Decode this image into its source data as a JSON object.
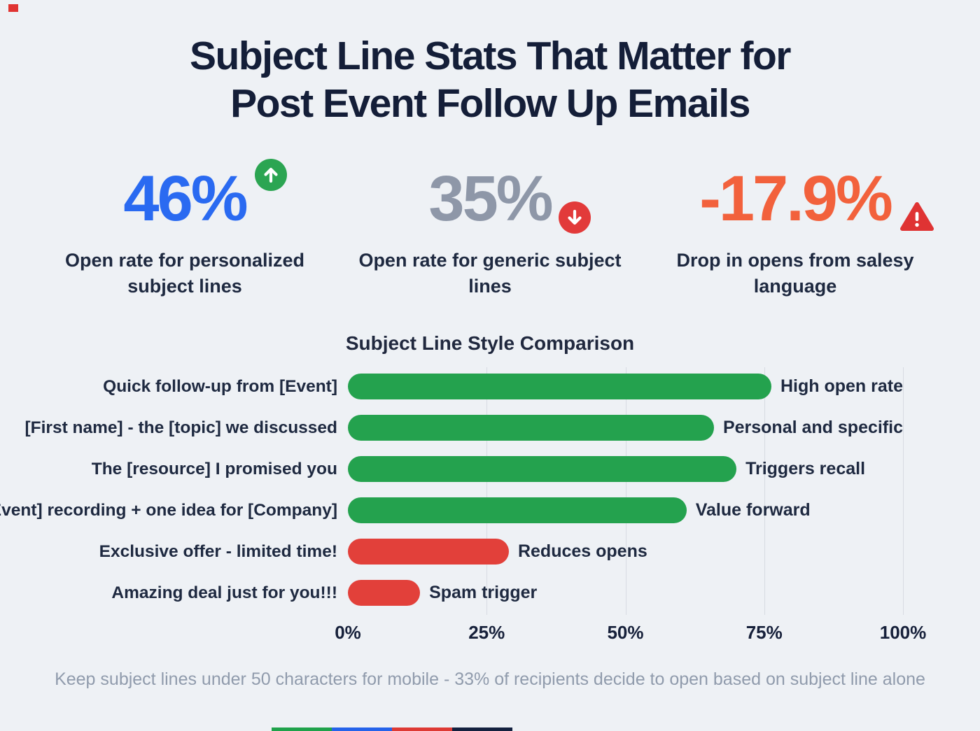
{
  "header": {
    "title_line1": "Subject Line Stats That Matter for",
    "title_line2": "Post Event Follow Up Emails"
  },
  "stats": [
    {
      "value": "46%",
      "caption": "Open rate for personalized subject lines",
      "value_color": "#2a6af1",
      "icon": "arrow-up-circle",
      "icon_color": "#2ba552"
    },
    {
      "value": "35%",
      "caption": "Open rate for generic subject lines",
      "value_color": "#8e97a8",
      "icon": "arrow-down-circle",
      "icon_color": "#e23a3a"
    },
    {
      "value": "-17.9%",
      "caption": "Drop in opens from salesy language",
      "value_color": "#f2613c",
      "icon": "warning-triangle",
      "icon_color": "#df3333"
    }
  ],
  "chart_data": {
    "type": "bar",
    "orientation": "horizontal",
    "title": "Subject Line Style Comparison",
    "categories": [
      "Quick follow-up from [Event]",
      "[First name] - the [topic] we discussed",
      "The [resource] I promised you",
      "[Event] recording + one idea for [Company]",
      "Exclusive offer - limited time!",
      "Amazing deal just for you!!!"
    ],
    "values": [
      83,
      74,
      70,
      61,
      29,
      13
    ],
    "bar_colors": [
      "#24a24e",
      "#24a24e",
      "#24a24e",
      "#24a24e",
      "#e2403a",
      "#e2403a"
    ],
    "annotations": [
      "High open rate",
      "Personal and specific",
      "Triggers recall",
      "Value forward",
      "Reduces opens",
      "Spam trigger"
    ],
    "x_ticks": [
      0,
      25,
      50,
      75,
      100
    ],
    "x_tick_labels": [
      "0%",
      "25%",
      "50%",
      "75%",
      "100%"
    ],
    "xlim": [
      0,
      100
    ],
    "grid": true,
    "legend": false
  },
  "footer": {
    "note": "Keep subject lines under 50 characters for mobile - 33% of recipients decide to open based on subject line alone",
    "strip_colors": [
      "#1fa24b",
      "#2563ea",
      "#de3a34",
      "#14213f"
    ]
  }
}
